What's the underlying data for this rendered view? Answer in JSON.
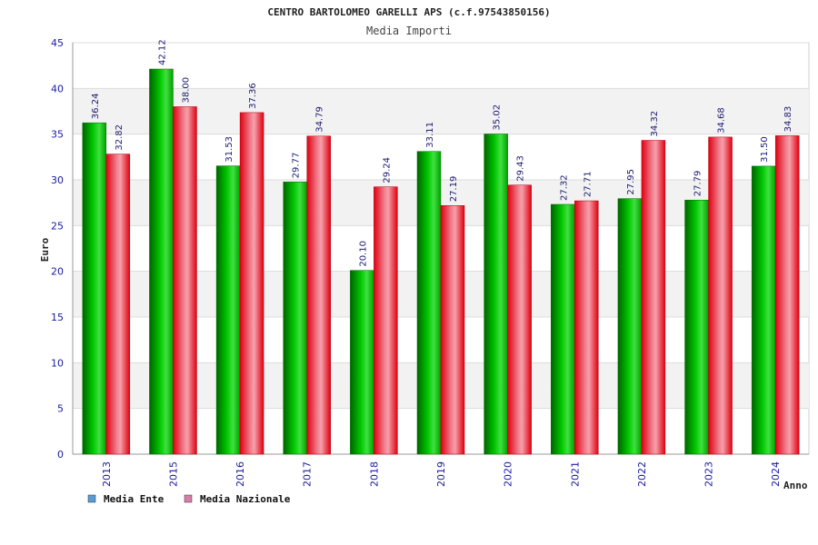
{
  "chart_data": {
    "type": "bar",
    "title": "CENTRO BARTOLOMEO GARELLI APS (c.f.97543850156)",
    "subtitle": "Media Importi",
    "ylabel": "Euro",
    "xlabel": "Anno",
    "ylim": [
      0,
      45
    ],
    "yticks": [
      0,
      5,
      10,
      15,
      20,
      25,
      30,
      35,
      40,
      45
    ],
    "categories": [
      "2013",
      "2015",
      "2016",
      "2017",
      "2018",
      "2019",
      "2020",
      "2021",
      "2022",
      "2023",
      "2024"
    ],
    "series": [
      {
        "name": "Media Ente",
        "values": [
          36.24,
          42.12,
          31.53,
          29.77,
          20.1,
          33.11,
          35.02,
          27.32,
          27.95,
          27.79,
          31.5
        ],
        "labels": [
          "36.24",
          "42.12",
          "31.53",
          "29.77",
          "20.10",
          "33.11",
          "35.02",
          "27.32",
          "27.95",
          "27.79",
          "31.50"
        ],
        "color": "#00b400",
        "legend_color": "#5b9bd5"
      },
      {
        "name": "Media Nazionale",
        "values": [
          32.82,
          38.0,
          37.36,
          34.79,
          29.24,
          27.19,
          29.43,
          27.71,
          34.32,
          34.68,
          34.83
        ],
        "labels": [
          "32.82",
          "38.00",
          "37.36",
          "34.79",
          "29.24",
          "27.19",
          "29.43",
          "27.71",
          "34.32",
          "34.68",
          "34.83"
        ],
        "color": "#e8001c",
        "legend_color": "#d77fa7"
      }
    ],
    "grid": true,
    "legend_position": "bottom-left"
  }
}
